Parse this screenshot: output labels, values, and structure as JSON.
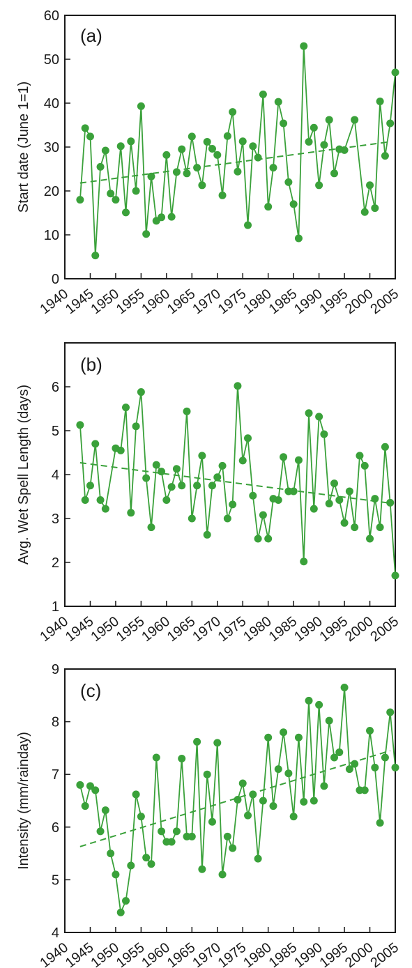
{
  "colors": {
    "series": "#3aa13a",
    "axis": "#1a1a1a",
    "background": "#ffffff"
  },
  "chart_data": [
    {
      "type": "line",
      "panel": "(a)",
      "title": "",
      "xlabel": "",
      "ylabel": "Start date (June 1=1)",
      "xlim": [
        1940,
        2005
      ],
      "ylim": [
        0,
        60
      ],
      "xticks": [
        1940,
        1945,
        1950,
        1955,
        1960,
        1965,
        1970,
        1975,
        1980,
        1985,
        1990,
        1995,
        2000,
        2005
      ],
      "yticks": [
        0,
        10,
        20,
        30,
        40,
        50,
        60
      ],
      "grid": false,
      "x": [
        1943,
        1944,
        1945,
        1946,
        1947,
        1948,
        1949,
        1950,
        1951,
        1952,
        1953,
        1954,
        1955,
        1956,
        1957,
        1958,
        1959,
        1960,
        1961,
        1962,
        1963,
        1964,
        1965,
        1966,
        1967,
        1968,
        1969,
        1970,
        1971,
        1972,
        1973,
        1974,
        1975,
        1976,
        1977,
        1978,
        1979,
        1980,
        1981,
        1982,
        1983,
        1984,
        1985,
        1986,
        1987,
        1988,
        1989,
        1990,
        1991,
        1992,
        1993,
        1994,
        1995,
        1996,
        1997,
        1998,
        1999,
        2000,
        2001,
        2002,
        2003,
        2004,
        2005
      ],
      "series": [
        {
          "values": [
            18,
            34.3,
            32.4,
            5.3,
            25.5,
            29.2,
            19.4,
            18,
            30.2,
            15.1,
            31.3,
            20,
            39.3,
            10.2,
            23.3,
            13.2,
            14,
            28.2,
            14.1,
            24.3,
            29.5,
            24,
            32.4,
            25.3,
            21.3,
            31.2,
            29.6,
            28.2,
            19,
            32.5,
            38,
            24.4,
            31.3,
            12.2,
            30.2,
            27.6,
            42,
            16.4,
            25.3,
            40.3,
            35.4,
            22,
            17,
            9.2,
            53,
            31.2,
            34.4,
            21.3,
            30.5,
            36.2,
            24,
            29.5,
            29.3,
            null,
            36.2,
            null,
            15.2,
            21.3,
            16.1,
            40.4,
            28,
            35.4,
            47
          ]
        }
      ],
      "trend": {
        "x": [
          1943,
          2004
        ],
        "y": [
          21.8,
          31.2
        ]
      }
    },
    {
      "type": "line",
      "panel": "(b)",
      "title": "",
      "xlabel": "",
      "ylabel": "Avg. Wet Spell Length (days)",
      "xlim": [
        1940,
        2005
      ],
      "ylim": [
        1,
        7
      ],
      "xticks": [
        1940,
        1945,
        1950,
        1955,
        1960,
        1965,
        1970,
        1975,
        1980,
        1985,
        1990,
        1995,
        2000,
        2005
      ],
      "yticks": [
        1,
        2,
        3,
        4,
        5,
        6
      ],
      "grid": false,
      "x": [
        1943,
        1944,
        1945,
        1946,
        1947,
        1948,
        1949,
        1950,
        1951,
        1952,
        1953,
        1954,
        1955,
        1956,
        1957,
        1958,
        1959,
        1960,
        1961,
        1962,
        1963,
        1964,
        1965,
        1966,
        1967,
        1968,
        1969,
        1970,
        1971,
        1972,
        1973,
        1974,
        1975,
        1976,
        1977,
        1978,
        1979,
        1980,
        1981,
        1982,
        1983,
        1984,
        1985,
        1986,
        1987,
        1988,
        1989,
        1990,
        1991,
        1992,
        1993,
        1994,
        1995,
        1996,
        1997,
        1998,
        1999,
        2000,
        2001,
        2002,
        2003,
        2004,
        2005
      ],
      "series": [
        {
          "values": [
            5.13,
            3.42,
            3.75,
            4.7,
            3.42,
            3.22,
            null,
            4.6,
            4.55,
            5.53,
            3.13,
            5.1,
            5.88,
            3.92,
            2.8,
            4.22,
            4.07,
            3.42,
            3.72,
            4.13,
            3.75,
            5.44,
            3,
            3.75,
            4.43,
            2.63,
            3.75,
            3.94,
            4.2,
            3,
            3.32,
            6.02,
            4.32,
            4.83,
            3.52,
            2.54,
            3.08,
            2.54,
            3.45,
            3.42,
            4.4,
            3.62,
            3.62,
            4.33,
            2.02,
            5.4,
            3.22,
            5.32,
            4.92,
            3.34,
            3.8,
            3.42,
            2.9,
            3.62,
            2.8,
            4.43,
            4.2,
            2.54,
            3.45,
            2.8,
            4.63,
            3.36,
            1.7
          ]
        }
      ],
      "trend": {
        "x": [
          1943,
          2004
        ],
        "y": [
          4.27,
          3.35
        ]
      }
    },
    {
      "type": "line",
      "panel": "(c)",
      "title": "",
      "xlabel": "",
      "ylabel": "Intensity (mm/rainday)",
      "xlim": [
        1940,
        2005
      ],
      "ylim": [
        4,
        9
      ],
      "xticks": [
        1940,
        1945,
        1950,
        1955,
        1960,
        1965,
        1970,
        1975,
        1980,
        1985,
        1990,
        1995,
        2000,
        2005
      ],
      "yticks": [
        4,
        5,
        6,
        7,
        8,
        9
      ],
      "grid": false,
      "x": [
        1943,
        1944,
        1945,
        1946,
        1947,
        1948,
        1949,
        1950,
        1951,
        1952,
        1953,
        1954,
        1955,
        1956,
        1957,
        1958,
        1959,
        1960,
        1961,
        1962,
        1963,
        1964,
        1965,
        1966,
        1967,
        1968,
        1969,
        1970,
        1971,
        1972,
        1973,
        1974,
        1975,
        1976,
        1977,
        1978,
        1979,
        1980,
        1981,
        1982,
        1983,
        1984,
        1985,
        1986,
        1987,
        1988,
        1989,
        1990,
        1991,
        1992,
        1993,
        1994,
        1995,
        1996,
        1997,
        1998,
        1999,
        2000,
        2001,
        2002,
        2003,
        2004,
        2005
      ],
      "series": [
        {
          "values": [
            6.8,
            6.4,
            6.78,
            6.7,
            5.92,
            6.32,
            5.5,
            5.1,
            4.38,
            4.6,
            5.27,
            6.62,
            6.2,
            5.42,
            5.3,
            7.32,
            5.92,
            5.72,
            5.72,
            5.92,
            7.3,
            5.82,
            5.82,
            7.62,
            5.2,
            7,
            6.1,
            7.6,
            5.1,
            5.82,
            5.6,
            6.52,
            6.83,
            6.22,
            6.62,
            5.4,
            6.5,
            7.7,
            6.4,
            7.1,
            7.8,
            7.02,
            6.2,
            7.7,
            6.48,
            8.4,
            6.5,
            8.32,
            6.78,
            8.02,
            7.32,
            7.42,
            8.65,
            7.1,
            7.2,
            6.7,
            6.7,
            7.83,
            7.13,
            6.08,
            7.32,
            8.18,
            7.13
          ]
        }
      ],
      "trend": {
        "x": [
          1943,
          2004
        ],
        "y": [
          5.63,
          7.45
        ]
      }
    }
  ]
}
